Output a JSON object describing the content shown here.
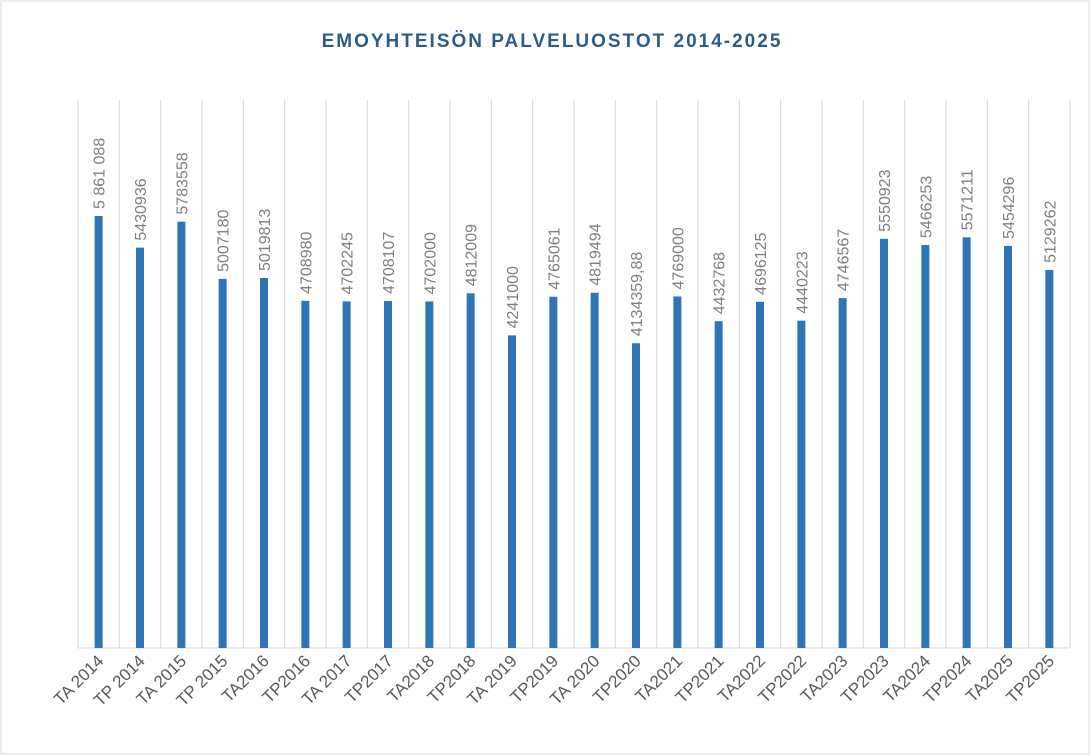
{
  "chart_data": {
    "type": "bar",
    "title": "EMOYHTEISÖN PALVELUOSTOT 2014-2025",
    "categories": [
      "TA 2014",
      "TP 2014",
      "TA 2015",
      "TP 2015",
      "TA2016",
      "TP2016",
      "TA 2017",
      "TP2017",
      "TA2018",
      "TP2018",
      "TA 2019",
      "TP2019",
      "TA 2020",
      "TP2020",
      "TA2021",
      "TP2021",
      "TA2022",
      "TP2022",
      "TA2023",
      "TP2023",
      "TA2024",
      "TP2024",
      "TA2025",
      "TP2025"
    ],
    "values": [
      5861088,
      5430936,
      5783558,
      5007180,
      5019813,
      4708980,
      4702245,
      4708107,
      4702000,
      4812009,
      4241000,
      4765061,
      4819494,
      4134359.88,
      4769000,
      4432768,
      4696125,
      4440223,
      4746567,
      5550923,
      5466253,
      5571211,
      5454296,
      5129262
    ],
    "value_labels": [
      "5 861 088",
      "5430936",
      "5783558",
      "5007180",
      "5019813",
      "4708980",
      "4702245",
      "4708107",
      "4702000",
      "4812009",
      "4241000",
      "4765061",
      "4819494",
      "4134359,88",
      "4769000",
      "4432768",
      "4696125",
      "4440223",
      "4746567",
      "5550923",
      "5466253",
      "5571211",
      "5454296",
      "5129262"
    ],
    "color": "#2e75b6",
    "ylim": [
      0,
      7000000
    ]
  }
}
